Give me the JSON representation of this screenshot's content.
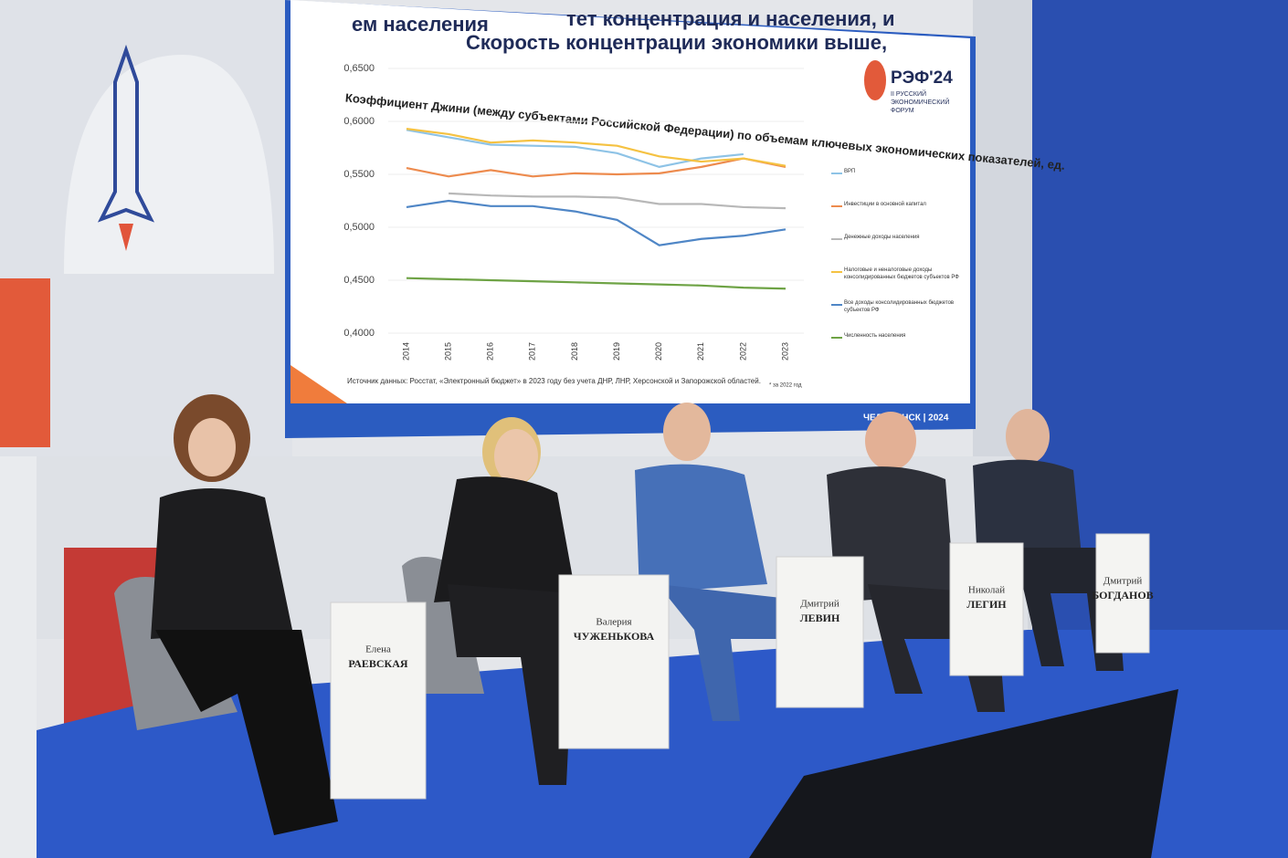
{
  "screen": {
    "title_lines": [
      "тет концентрация и населения, и",
      "Скорость концентрации экономики выше,",
      "ем населения"
    ],
    "logo": {
      "name": "РЭФ'24",
      "subtitle_lines": [
        "II РУССКИЙ",
        "ЭКОНОМИЧЕСКИЙ",
        "ФОРУМ"
      ]
    },
    "source": "Источник данных: Росстат, «Электронный бюджет» в 2023 году без учета ДНР, ЛНР, Херсонской и Запорожской областей.",
    "footnote": "* за 2022 год",
    "footer": "ЧЕЛЯБИНСК | 2024"
  },
  "chart_data": {
    "type": "line",
    "title": "Коэффициент Джини (между субъектами Российской Федерации) по объемам ключевых экономических показателей, ед.",
    "categories": [
      "2014",
      "2015",
      "2016",
      "2017",
      "2018",
      "2019",
      "2020",
      "2021",
      "2022",
      "2023"
    ],
    "ylim": [
      0.4,
      0.65
    ],
    "yticks": [
      {
        "value": 0.65,
        "label": "0,6500"
      },
      {
        "value": 0.6,
        "label": "0,6000"
      },
      {
        "value": 0.55,
        "label": "0,5500"
      },
      {
        "value": 0.5,
        "label": "0,5000"
      },
      {
        "value": 0.45,
        "label": "0,4500"
      },
      {
        "value": 0.4,
        "label": "0,4000"
      }
    ],
    "grid": true,
    "legend": "right",
    "series": [
      {
        "name": "ВРП",
        "color": "#8ec3e6",
        "values": [
          0.592,
          0.585,
          0.578,
          0.577,
          0.576,
          0.57,
          0.557,
          0.565,
          0.569,
          null
        ]
      },
      {
        "name": "Инвестиции в основной капитал",
        "color": "#ed8b4e",
        "values": [
          0.556,
          0.548,
          0.554,
          0.548,
          0.551,
          0.55,
          0.551,
          0.557,
          0.565,
          0.557
        ]
      },
      {
        "name": "Денежные доходы населения",
        "color": "#b8b8b8",
        "values": [
          null,
          0.532,
          0.53,
          0.529,
          0.529,
          0.528,
          0.522,
          0.522,
          0.519,
          0.518
        ]
      },
      {
        "name": "Налоговые и неналоговые доходы консолидированных бюджетов субъектов РФ",
        "color": "#f5c242",
        "values": [
          0.593,
          0.588,
          0.58,
          0.582,
          0.58,
          0.577,
          0.567,
          0.562,
          0.565,
          0.558
        ]
      },
      {
        "name": "Все доходы консолидированных бюджетов субъектов РФ",
        "color": "#4f86c6",
        "values": [
          0.519,
          0.525,
          0.52,
          0.52,
          0.515,
          0.507,
          0.483,
          0.489,
          0.492,
          0.498
        ]
      },
      {
        "name": "Численность населения",
        "color": "#6ea345",
        "values": [
          0.452,
          0.451,
          0.45,
          0.449,
          0.448,
          0.447,
          0.446,
          0.445,
          0.443,
          0.442
        ]
      }
    ]
  },
  "name_plates": [
    {
      "first": "Елена",
      "last": "РАЕВСКАЯ"
    },
    {
      "first": "Валерия",
      "last": "ЧУЖЕНЬКОВА"
    },
    {
      "first": "Дмитрий",
      "last": "ЛЕВИН"
    },
    {
      "first": "Николай",
      "last": "ЛЕГИН"
    },
    {
      "first": "Дмитрий",
      "last": "БОГДАНОВ"
    }
  ]
}
